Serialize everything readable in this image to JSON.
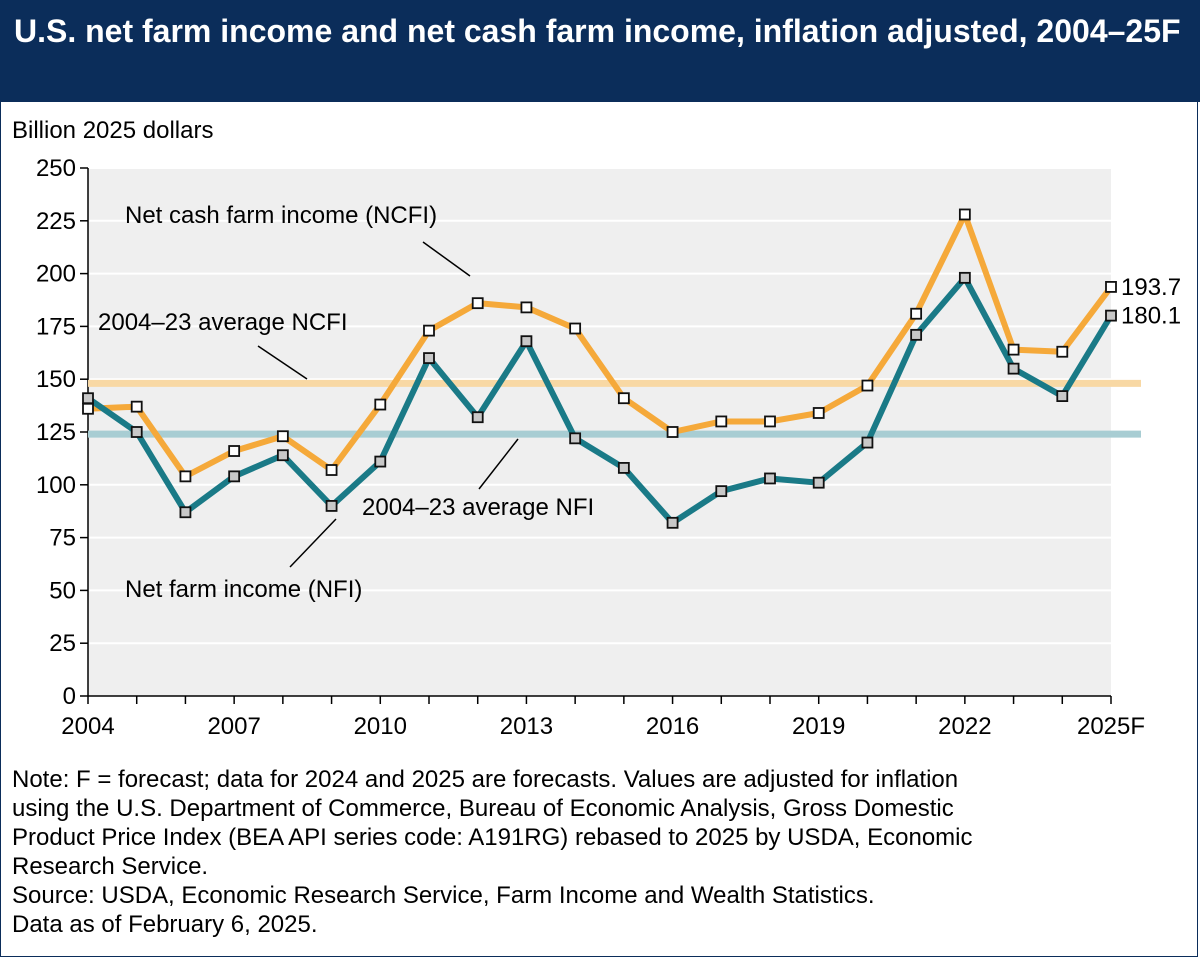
{
  "header": {
    "title": "U.S. net farm income and net cash farm income, inflation adjusted, 2004–25F"
  },
  "chart_data": {
    "type": "line",
    "title": "U.S. net farm income and net cash farm income, inflation adjusted, 2004–25F",
    "ylabel": "Billion 2025 dollars",
    "xlabel": "",
    "ylim": [
      0,
      250
    ],
    "yticks": [
      0,
      25,
      50,
      75,
      100,
      125,
      150,
      175,
      200,
      225,
      250
    ],
    "x": [
      "2004",
      "2005",
      "2006",
      "2007",
      "2008",
      "2009",
      "2010",
      "2011",
      "2012",
      "2013",
      "2014",
      "2015",
      "2016",
      "2017",
      "2018",
      "2019",
      "2020",
      "2021",
      "2022",
      "2023",
      "2024",
      "2025F"
    ],
    "xtick_labels": [
      "2004",
      "2007",
      "2010",
      "2013",
      "2016",
      "2019",
      "2022",
      "2025F"
    ],
    "grid": true,
    "series": [
      {
        "name": "Net cash farm income (NCFI)",
        "color": "#f5a93a",
        "values": [
          136,
          137,
          104,
          116,
          123,
          107,
          138,
          173,
          186,
          184,
          174,
          141,
          125,
          130,
          130,
          134,
          147,
          181,
          228,
          164,
          163,
          193.7
        ],
        "end_label": "193.7"
      },
      {
        "name": "Net farm income (NFI)",
        "color": "#1a7a87",
        "values": [
          141,
          125,
          87,
          104,
          114,
          90,
          111,
          160,
          132,
          168,
          122,
          108,
          82,
          97,
          103,
          101,
          120,
          171,
          198,
          155,
          142,
          180.1
        ],
        "end_label": "180.1"
      }
    ],
    "reference_lines": [
      {
        "name": "2004–23 average NCFI",
        "value": 148,
        "color": "#f8d8a4"
      },
      {
        "name": "2004–23 average NFI",
        "value": 124,
        "color": "#a8cdd3"
      }
    ],
    "annotations": [
      "Net cash farm income (NCFI)",
      "2004–23 average NCFI",
      "2004–23 average NFI",
      "Net farm income (NFI)"
    ]
  },
  "notes": {
    "lines": [
      "Note: F = forecast; data for 2024 and 2025 are forecasts. Values are adjusted for inflation",
      "using the U.S. Department of Commerce, Bureau of Economic Analysis, Gross Domestic",
      "Product Price Index (BEA API series code: A191RG) rebased to 2025 by USDA, Economic",
      "Research Service.",
      "Source: USDA, Economic Research Service, Farm Income and Wealth Statistics.",
      "Data as of February 6, 2025."
    ]
  }
}
